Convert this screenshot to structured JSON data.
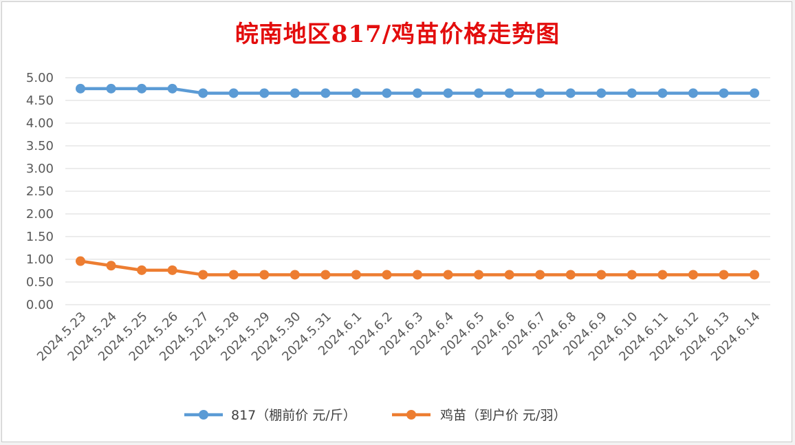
{
  "chart_data": {
    "type": "line",
    "title": "皖南地区817/鸡苗价格走势图",
    "categories": [
      "2024.5.23",
      "2024.5.24",
      "2024.5.25",
      "2024.5.26",
      "2024.5.27",
      "2024.5.28",
      "2024.5.29",
      "2024.5.30",
      "2024.5.31",
      "2024.6.1",
      "2024.6.2",
      "2024.6.3",
      "2024.6.4",
      "2024.6.5",
      "2024.6.6",
      "2024.6.7",
      "2024.6.8",
      "2024.6.9",
      "2024.6.10",
      "2024.6.11",
      "2024.6.12",
      "2024.6.13",
      "2024.6.14"
    ],
    "series": [
      {
        "name": "817（棚前价 元/斤）",
        "color": "#5b9bd5",
        "values": [
          4.76,
          4.76,
          4.76,
          4.76,
          4.66,
          4.66,
          4.66,
          4.66,
          4.66,
          4.66,
          4.66,
          4.66,
          4.66,
          4.66,
          4.66,
          4.66,
          4.66,
          4.66,
          4.66,
          4.66,
          4.66,
          4.66,
          4.66
        ]
      },
      {
        "name": "鸡苗（到户价 元/羽）",
        "color": "#ed7d31",
        "values": [
          0.96,
          0.86,
          0.76,
          0.76,
          0.66,
          0.66,
          0.66,
          0.66,
          0.66,
          0.66,
          0.66,
          0.66,
          0.66,
          0.66,
          0.66,
          0.66,
          0.66,
          0.66,
          0.66,
          0.66,
          0.66,
          0.66,
          0.66
        ]
      }
    ],
    "yticks": [
      "0.00",
      "0.50",
      "1.00",
      "1.50",
      "2.00",
      "2.50",
      "3.00",
      "3.50",
      "4.00",
      "4.50",
      "5.00"
    ],
    "ylim": [
      0,
      5
    ],
    "grid": true,
    "legend_position": "bottom",
    "title_color": "#e30d0d"
  }
}
